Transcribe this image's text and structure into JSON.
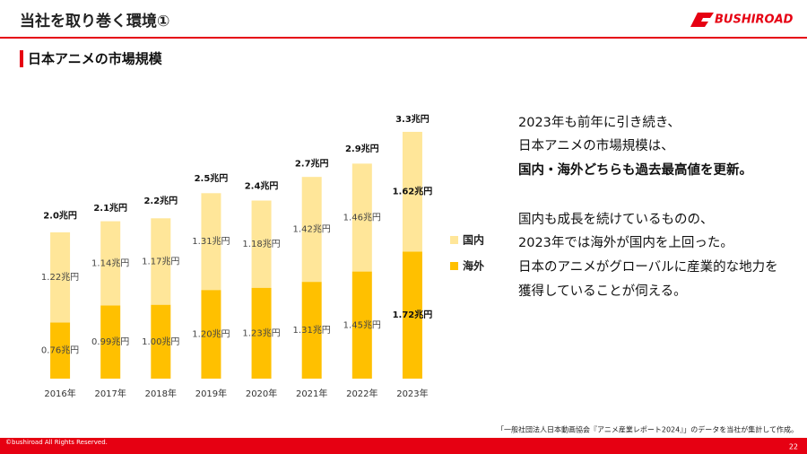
{
  "header": {
    "title": "当社を取り巻く環境①",
    "logo": "BUSHIROAD"
  },
  "section_title": "日本アニメの市場規模",
  "chart_data": {
    "type": "stacked-bar",
    "categories": [
      "2016年",
      "2017年",
      "2018年",
      "2019年",
      "2020年",
      "2021年",
      "2022年",
      "2023年"
    ],
    "series": [
      {
        "name": "海外",
        "color": "#ffc000",
        "values": [
          0.76,
          0.99,
          1.0,
          1.2,
          1.23,
          1.31,
          1.45,
          1.72
        ],
        "value_labels": [
          "0.76兆円",
          "0.99兆円",
          "1.00兆円",
          "1.20兆円",
          "1.23兆円",
          "1.31兆円",
          "1.45兆円",
          "1.72兆円"
        ]
      },
      {
        "name": "国内",
        "color": "#ffe699",
        "values": [
          1.22,
          1.14,
          1.17,
          1.31,
          1.18,
          1.42,
          1.46,
          1.62
        ],
        "value_labels": [
          "1.22兆円",
          "1.14兆円",
          "1.17兆円",
          "1.31兆円",
          "1.18兆円",
          "1.42兆円",
          "1.46兆円",
          "1.62兆円"
        ]
      }
    ],
    "totals": [
      2.0,
      2.1,
      2.2,
      2.5,
      2.4,
      2.7,
      2.9,
      3.3
    ],
    "total_labels": [
      "2.0兆円",
      "2.1兆円",
      "2.2兆円",
      "2.5兆円",
      "2.4兆円",
      "2.7兆円",
      "2.9兆円",
      "3.3兆円"
    ],
    "ylim": [
      0,
      3.4
    ],
    "grid": false
  },
  "commentary": [
    "2023年も前年に引き続き、",
    "日本アニメの市場規模は、",
    "国内・海外どちらも過去最高値を更新。",
    "国内も成長を続けているものの、",
    "2023年では海外が国内を上回った。",
    "日本のアニメがグローバルに産業的な地力を",
    "獲得していることが伺える。"
  ],
  "source_note": "「一般社団法人日本動画協会『アニメ産業レポート2024』」のデータを当社が集計して作成。",
  "footer": {
    "copyright": "©bushiroad All Rights Reserved.",
    "page_number": "22"
  }
}
